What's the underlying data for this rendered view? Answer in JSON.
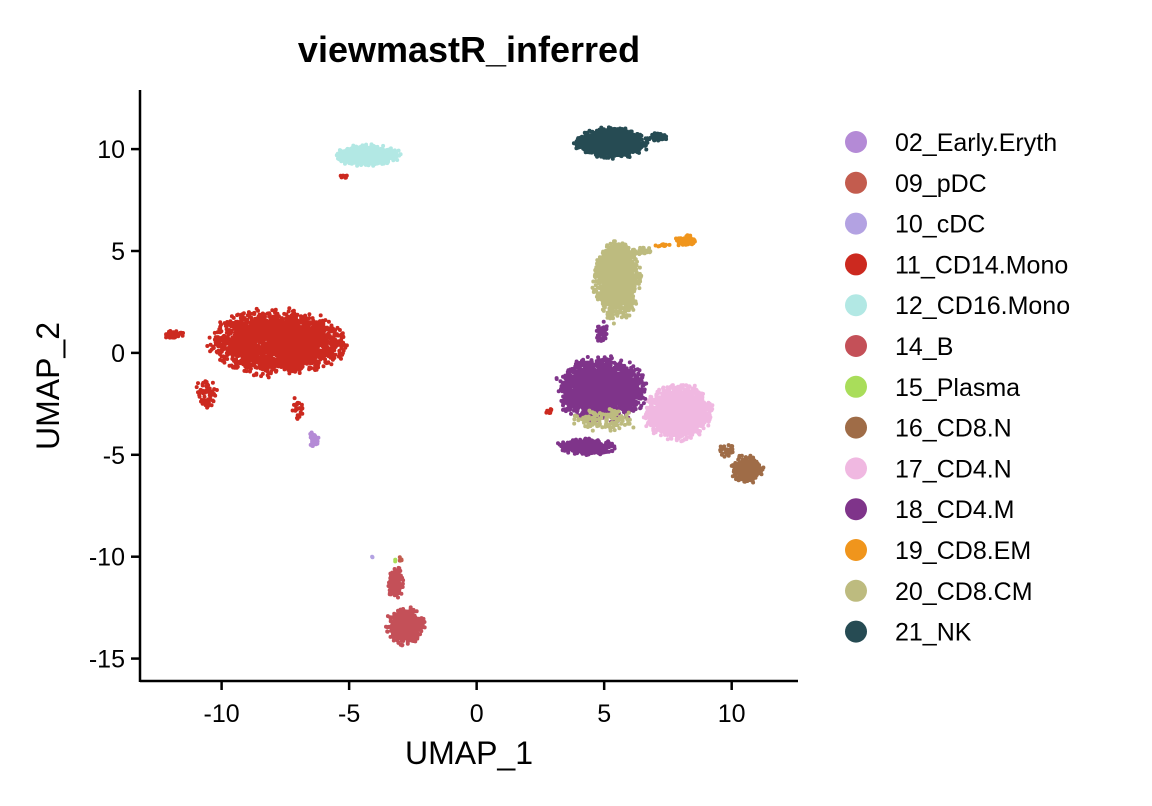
{
  "chart_data": {
    "type": "scatter",
    "title": "viewmastR_inferred",
    "xlabel": "UMAP_1",
    "ylabel": "UMAP_2",
    "xlim": [
      -13.2,
      12.6
    ],
    "ylim": [
      -16.1,
      12.9
    ],
    "x_ticks": [
      -10,
      -5,
      0,
      5,
      10
    ],
    "x_tick_labels": [
      "-10",
      "-5",
      "0",
      "5",
      "10"
    ],
    "y_ticks": [
      -15,
      -10,
      -5,
      0,
      5,
      10
    ],
    "y_tick_labels": [
      "-15",
      "-10",
      "-5",
      "0",
      "5",
      "10"
    ],
    "grid": false,
    "legend_position": "right",
    "series": [
      {
        "name": "02_Early.Eryth",
        "color": "#b48ad6",
        "clusters": [
          {
            "cx": -6.4,
            "cy": -4.3,
            "rx": 0.22,
            "ry": 0.45,
            "n": 45
          }
        ]
      },
      {
        "name": "09_pDC",
        "color": "#c35c4e",
        "clusters": [
          {
            "cx": -3.0,
            "cy": -10.1,
            "rx": 0.1,
            "ry": 0.15,
            "n": 5
          }
        ]
      },
      {
        "name": "10_cDC",
        "color": "#b3a2e2",
        "clusters": [
          {
            "cx": -4.1,
            "cy": -10.0,
            "rx": 0.05,
            "ry": 0.05,
            "n": 2
          }
        ]
      },
      {
        "name": "11_CD14.Mono",
        "color": "#cc291f",
        "clusters": [
          {
            "cx": -7.8,
            "cy": 0.5,
            "rx": 2.9,
            "ry": 1.75,
            "n": 2400
          },
          {
            "cx": -11.9,
            "cy": 0.9,
            "rx": 0.5,
            "ry": 0.2,
            "n": 40
          },
          {
            "cx": -10.6,
            "cy": -1.9,
            "rx": 0.45,
            "ry": 0.9,
            "n": 70
          },
          {
            "cx": -7.0,
            "cy": -2.7,
            "rx": 0.25,
            "ry": 0.7,
            "n": 25
          },
          {
            "cx": -5.2,
            "cy": 8.7,
            "rx": 0.2,
            "ry": 0.2,
            "n": 8
          },
          {
            "cx": 2.9,
            "cy": -2.9,
            "rx": 0.3,
            "ry": 0.15,
            "n": 8
          }
        ]
      },
      {
        "name": "12_CD16.Mono",
        "color": "#b2e8e4",
        "clusters": [
          {
            "cx": -4.3,
            "cy": 9.7,
            "rx": 1.4,
            "ry": 0.55,
            "n": 700
          }
        ]
      },
      {
        "name": "14_B",
        "color": "#c45058",
        "clusters": [
          {
            "cx": -2.8,
            "cy": -13.4,
            "rx": 0.8,
            "ry": 1.0,
            "n": 550
          },
          {
            "cx": -3.2,
            "cy": -11.3,
            "rx": 0.35,
            "ry": 0.9,
            "n": 150
          }
        ]
      },
      {
        "name": "15_Plasma",
        "color": "#a9dd5a",
        "clusters": [
          {
            "cx": -3.2,
            "cy": -10.2,
            "rx": 0.08,
            "ry": 0.1,
            "n": 3
          }
        ]
      },
      {
        "name": "16_CD8.N",
        "color": "#9f6c47",
        "clusters": [
          {
            "cx": 10.6,
            "cy": -5.7,
            "rx": 0.7,
            "ry": 0.75,
            "n": 250
          },
          {
            "cx": 9.8,
            "cy": -4.8,
            "rx": 0.4,
            "ry": 0.4,
            "n": 30
          }
        ]
      },
      {
        "name": "17_CD4.N",
        "color": "#f0b8e1",
        "clusters": [
          {
            "cx": 7.9,
            "cy": -2.9,
            "rx": 1.45,
            "ry": 1.5,
            "n": 1500
          }
        ]
      },
      {
        "name": "18_CD4.M",
        "color": "#7f348a",
        "clusters": [
          {
            "cx": 4.9,
            "cy": -1.8,
            "rx": 1.9,
            "ry": 1.7,
            "n": 2200
          },
          {
            "cx": 4.3,
            "cy": -4.6,
            "rx": 1.2,
            "ry": 0.45,
            "n": 300
          },
          {
            "cx": 4.9,
            "cy": 1.0,
            "rx": 0.3,
            "ry": 0.6,
            "n": 50
          }
        ]
      },
      {
        "name": "19_CD8.EM",
        "color": "#f0951c",
        "clusters": [
          {
            "cx": 8.2,
            "cy": 5.5,
            "rx": 0.45,
            "ry": 0.3,
            "n": 90
          },
          {
            "cx": 7.2,
            "cy": 5.3,
            "rx": 0.4,
            "ry": 0.12,
            "n": 12
          }
        ]
      },
      {
        "name": "20_CD8.CM",
        "color": "#bdbb7f",
        "clusters": [
          {
            "cx": 5.5,
            "cy": 3.6,
            "rx": 1.0,
            "ry": 2.2,
            "n": 1300
          },
          {
            "cx": 6.5,
            "cy": 5.0,
            "rx": 0.6,
            "ry": 0.2,
            "n": 40
          },
          {
            "cx": 5.0,
            "cy": -3.3,
            "rx": 1.5,
            "ry": 0.6,
            "n": 120
          }
        ]
      },
      {
        "name": "21_NK",
        "color": "#264b53",
        "clusters": [
          {
            "cx": 5.3,
            "cy": 10.3,
            "rx": 1.55,
            "ry": 0.8,
            "n": 1100
          },
          {
            "cx": 7.1,
            "cy": 10.6,
            "rx": 0.5,
            "ry": 0.2,
            "n": 60
          }
        ]
      }
    ]
  }
}
